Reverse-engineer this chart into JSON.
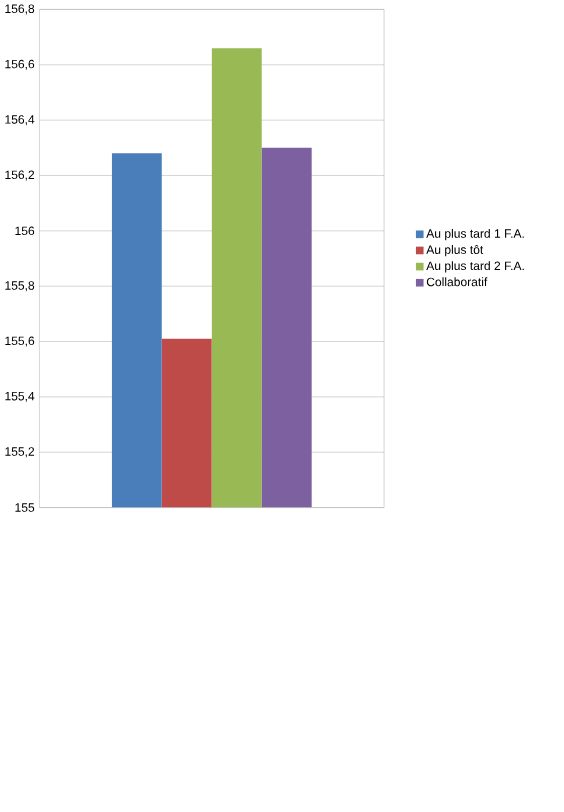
{
  "chart_data": {
    "type": "bar",
    "categories": [
      null
    ],
    "series": [
      {
        "name": "Au plus tard 1 F.A.",
        "color": "#4a7ebb",
        "values": [
          156.28
        ]
      },
      {
        "name": "Au plus tôt",
        "color": "#be4b48",
        "values": [
          155.61
        ]
      },
      {
        "name": "Au plus tard 2 F.A.",
        "color": "#98b954",
        "values": [
          156.66
        ]
      },
      {
        "name": "Collaboratif",
        "color": "#7d60a0",
        "values": [
          156.3
        ]
      }
    ],
    "ylim": [
      155,
      156.8
    ],
    "yticks": [
      155,
      {
        "value": 155.2,
        "label": "155,2"
      },
      {
        "value": 155.4,
        "label": "155,4"
      },
      {
        "value": 155.6,
        "label": "155,6"
      },
      {
        "value": 155.8,
        "label": "155,8"
      },
      156,
      {
        "value": 156.2,
        "label": "156,2"
      },
      {
        "value": 156.4,
        "label": "156,4"
      },
      {
        "value": 156.6,
        "label": "156,6"
      },
      {
        "value": 156.8,
        "label": "156,8"
      }
    ],
    "grid": "y",
    "legend": "right"
  }
}
